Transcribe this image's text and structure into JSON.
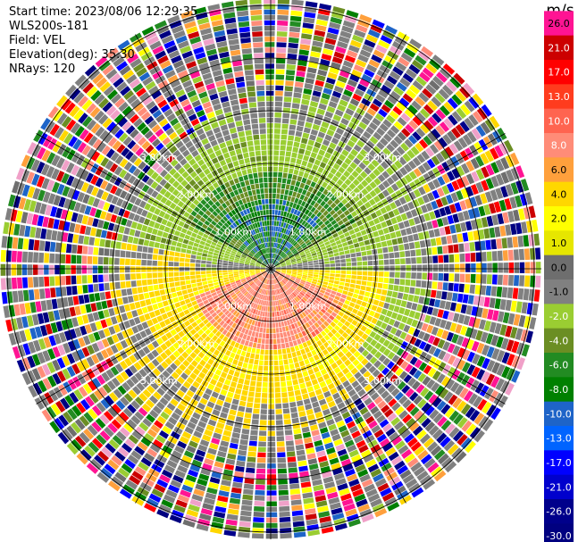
{
  "header": {
    "start_time": "Start time: 2023/08/06 12:29:35",
    "instrument": "WLS200s-181",
    "field": "Field: VEL",
    "elevation": "Elevation(deg): 35.30",
    "nrays": "NRays: 120"
  },
  "chart_data": {
    "type": "heatmap",
    "projection": "polar (PPI)",
    "field": "VEL",
    "n_rays": 120,
    "range_rings_km": [
      1.0,
      2.0,
      3.0
    ],
    "range_ring_labels": [
      "1.00km",
      "2.00km",
      "3.00km"
    ],
    "colorbar": {
      "unit": "m/s",
      "ticks": [
        26.0,
        21.0,
        17.0,
        13.0,
        10.0,
        8.0,
        6.0,
        4.0,
        2.0,
        1.0,
        0.0,
        -1.0,
        -2.0,
        -4.0,
        -6.0,
        -8.0,
        -10.0,
        -13.0,
        -17.0,
        -21.0,
        -26.0,
        -30.0
      ],
      "tick_labels": [
        "26.0",
        "21.0",
        "17.0",
        "13.0",
        "10.0",
        "8.0",
        "6.0",
        "4.0",
        "2.0",
        "1.0",
        "0.0",
        "-1.0",
        "-2.0",
        "-4.0",
        "-6.0",
        "-8.0",
        "-10.0",
        "-13.0",
        "-17.0",
        "-21.0",
        "-26.0",
        "-30.0"
      ],
      "colors": [
        "#f0a0c8",
        "#ff1493",
        "#cc0000",
        "#ff0000",
        "#ff3c1e",
        "#ff6450",
        "#ff8c78",
        "#ffa03c",
        "#ffd700",
        "#ffff00",
        "#e6e600",
        "#6e6e6e",
        "#808080",
        "#9acd32",
        "#6b8e23",
        "#228b22",
        "#008000",
        "#1e64c8",
        "#0064ff",
        "#0000ff",
        "#0000cd",
        "#00008b",
        "#000080",
        "#0a0a46"
      ]
    },
    "summary": "Radial velocity PPI: positive velocities (yellow/orange) to the south, negative velocities (green) to the north, noisy multicolor returns beyond ~3 km"
  }
}
